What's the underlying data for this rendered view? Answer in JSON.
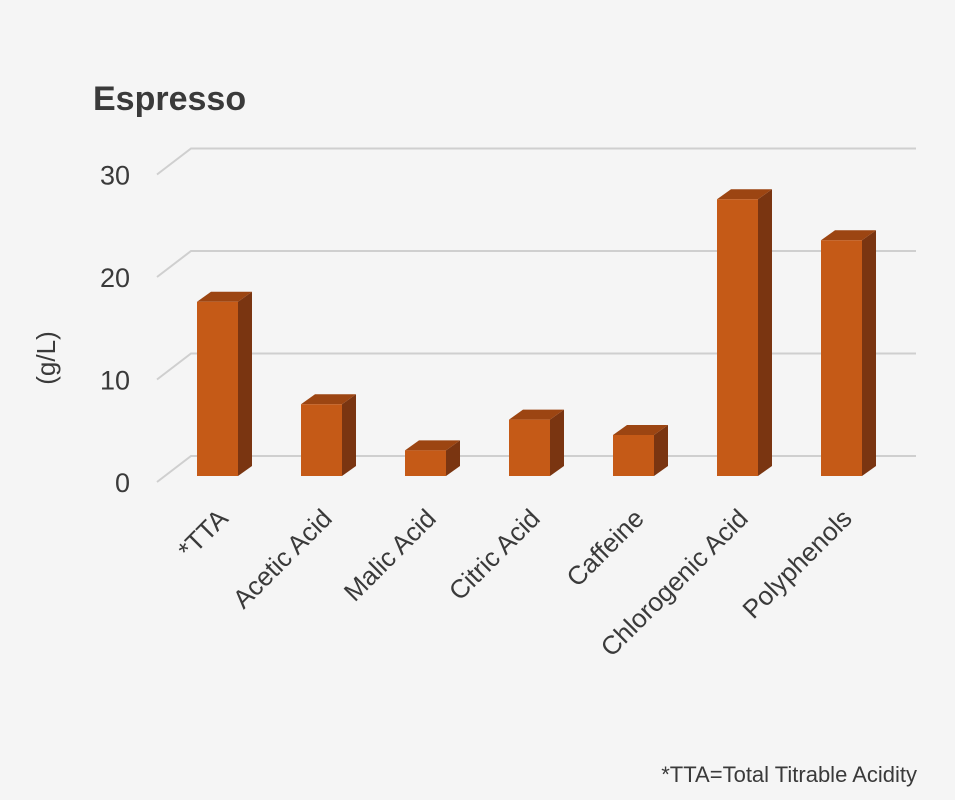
{
  "chart_data": {
    "type": "bar",
    "title": "Espresso",
    "ylabel": "(g/L)",
    "xlabel": "",
    "categories": [
      "*TTA",
      "Acetic Acid",
      "Malic Acid",
      "Citric Acid",
      "Caffeine",
      "Chlorogenic Acid",
      "Polyphenols"
    ],
    "values": [
      17,
      7,
      2.5,
      5.5,
      4,
      27,
      23
    ],
    "ylim": [
      0,
      30
    ],
    "yticks": [
      "0",
      "10",
      "20",
      "30"
    ],
    "grid": true,
    "legend": "none",
    "footnote": "*TTA=Total Titrable Acidity",
    "colors": {
      "bar_front": "#c55a17",
      "bar_side": "#7a3511",
      "bar_top": "#9c4512",
      "grid": "#cfcfcf",
      "text": "#3a3a3a",
      "background": "#f5f5f5"
    }
  }
}
